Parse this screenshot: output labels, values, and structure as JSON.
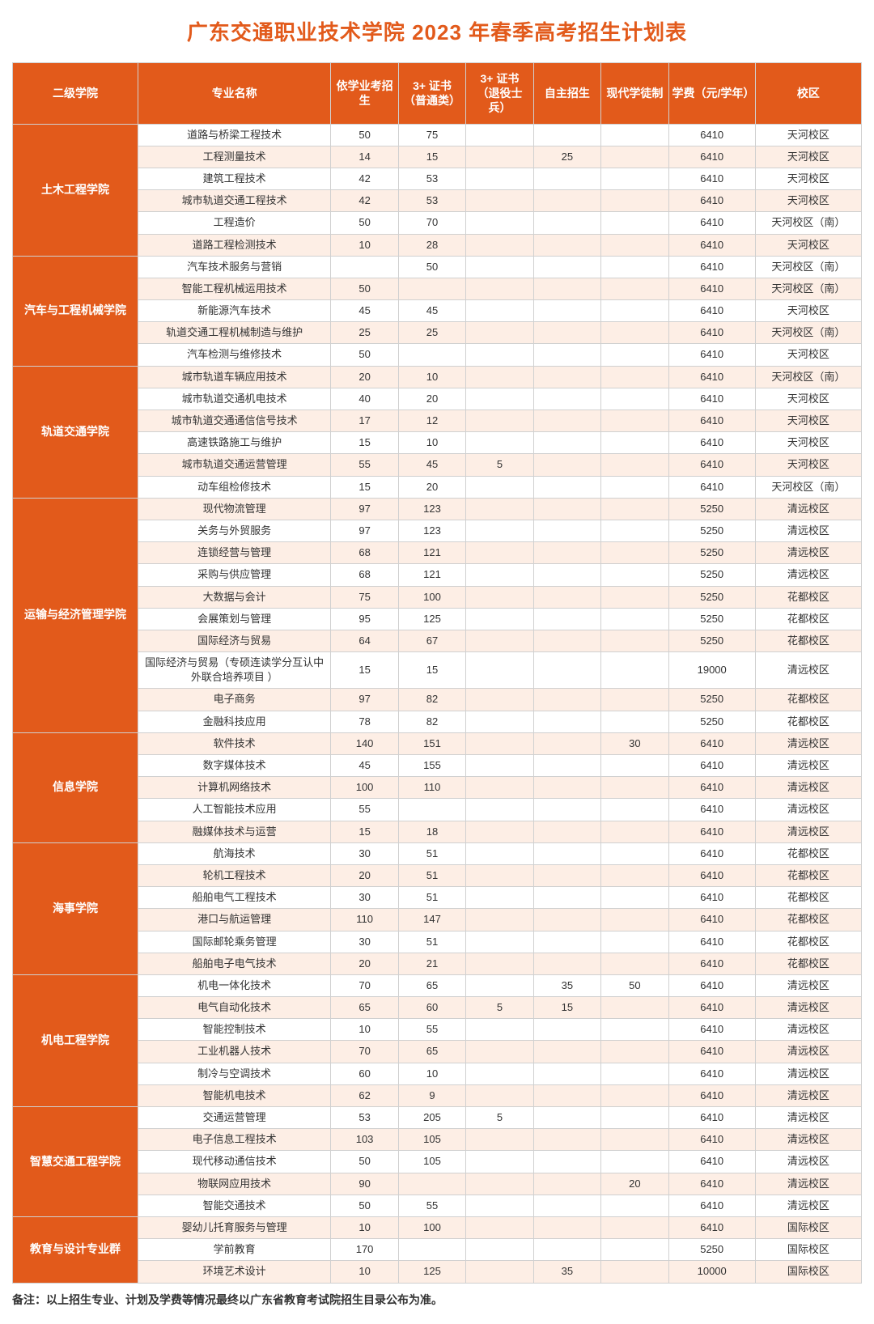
{
  "title": "广东交通职业技术学院 2023 年春季高考招生计划表",
  "columns": [
    "二级学院",
    "专业名称",
    "依学业考招生",
    "3+ 证书（普通类）",
    "3+ 证书（退役士兵）",
    "自主招生",
    "现代学徒制",
    "学费（元/学年）",
    "校区"
  ],
  "footnote": "备注：以上招生专业、计划及学费等情况最终以广东省教育考试院招生目录公布为准。",
  "colors": {
    "accent": "#e25a1b",
    "stripe_even": "#fdeee5",
    "stripe_odd": "#ffffff",
    "border": "#d0d0d0",
    "text": "#333333",
    "header_text": "#ffffff"
  },
  "colleges": [
    {
      "name": "土木工程学院",
      "rows": [
        {
          "major": "道路与桥梁工程技术",
          "c1": "50",
          "c2": "75",
          "c3": "",
          "c4": "",
          "c5": "",
          "fee": "6410",
          "campus": "天河校区"
        },
        {
          "major": "工程测量技术",
          "c1": "14",
          "c2": "15",
          "c3": "",
          "c4": "25",
          "c5": "",
          "fee": "6410",
          "campus": "天河校区"
        },
        {
          "major": "建筑工程技术",
          "c1": "42",
          "c2": "53",
          "c3": "",
          "c4": "",
          "c5": "",
          "fee": "6410",
          "campus": "天河校区"
        },
        {
          "major": "城市轨道交通工程技术",
          "c1": "42",
          "c2": "53",
          "c3": "",
          "c4": "",
          "c5": "",
          "fee": "6410",
          "campus": "天河校区"
        },
        {
          "major": "工程造价",
          "c1": "50",
          "c2": "70",
          "c3": "",
          "c4": "",
          "c5": "",
          "fee": "6410",
          "campus": "天河校区（南）"
        },
        {
          "major": "道路工程检测技术",
          "c1": "10",
          "c2": "28",
          "c3": "",
          "c4": "",
          "c5": "",
          "fee": "6410",
          "campus": "天河校区"
        }
      ]
    },
    {
      "name": "汽车与工程机械学院",
      "rows": [
        {
          "major": "汽车技术服务与营销",
          "c1": "",
          "c2": "50",
          "c3": "",
          "c4": "",
          "c5": "",
          "fee": "6410",
          "campus": "天河校区（南）"
        },
        {
          "major": "智能工程机械运用技术",
          "c1": "50",
          "c2": "",
          "c3": "",
          "c4": "",
          "c5": "",
          "fee": "6410",
          "campus": "天河校区（南）"
        },
        {
          "major": "新能源汽车技术",
          "c1": "45",
          "c2": "45",
          "c3": "",
          "c4": "",
          "c5": "",
          "fee": "6410",
          "campus": "天河校区"
        },
        {
          "major": "轨道交通工程机械制造与维护",
          "c1": "25",
          "c2": "25",
          "c3": "",
          "c4": "",
          "c5": "",
          "fee": "6410",
          "campus": "天河校区（南）"
        },
        {
          "major": "汽车检测与维修技术",
          "c1": "50",
          "c2": "",
          "c3": "",
          "c4": "",
          "c5": "",
          "fee": "6410",
          "campus": "天河校区"
        }
      ]
    },
    {
      "name": "轨道交通学院",
      "rows": [
        {
          "major": "城市轨道车辆应用技术",
          "c1": "20",
          "c2": "10",
          "c3": "",
          "c4": "",
          "c5": "",
          "fee": "6410",
          "campus": "天河校区（南）"
        },
        {
          "major": "城市轨道交通机电技术",
          "c1": "40",
          "c2": "20",
          "c3": "",
          "c4": "",
          "c5": "",
          "fee": "6410",
          "campus": "天河校区"
        },
        {
          "major": "城市轨道交通通信信号技术",
          "c1": "17",
          "c2": "12",
          "c3": "",
          "c4": "",
          "c5": "",
          "fee": "6410",
          "campus": "天河校区"
        },
        {
          "major": "高速铁路施工与维护",
          "c1": "15",
          "c2": "10",
          "c3": "",
          "c4": "",
          "c5": "",
          "fee": "6410",
          "campus": "天河校区"
        },
        {
          "major": "城市轨道交通运营管理",
          "c1": "55",
          "c2": "45",
          "c3": "5",
          "c4": "",
          "c5": "",
          "fee": "6410",
          "campus": "天河校区"
        },
        {
          "major": "动车组检修技术",
          "c1": "15",
          "c2": "20",
          "c3": "",
          "c4": "",
          "c5": "",
          "fee": "6410",
          "campus": "天河校区（南）"
        }
      ]
    },
    {
      "name": "运输与经济管理学院",
      "rows": [
        {
          "major": "现代物流管理",
          "c1": "97",
          "c2": "123",
          "c3": "",
          "c4": "",
          "c5": "",
          "fee": "5250",
          "campus": "清远校区"
        },
        {
          "major": "关务与外贸服务",
          "c1": "97",
          "c2": "123",
          "c3": "",
          "c4": "",
          "c5": "",
          "fee": "5250",
          "campus": "清远校区"
        },
        {
          "major": "连锁经营与管理",
          "c1": "68",
          "c2": "121",
          "c3": "",
          "c4": "",
          "c5": "",
          "fee": "5250",
          "campus": "清远校区"
        },
        {
          "major": "采购与供应管理",
          "c1": "68",
          "c2": "121",
          "c3": "",
          "c4": "",
          "c5": "",
          "fee": "5250",
          "campus": "清远校区"
        },
        {
          "major": "大数据与会计",
          "c1": "75",
          "c2": "100",
          "c3": "",
          "c4": "",
          "c5": "",
          "fee": "5250",
          "campus": "花都校区"
        },
        {
          "major": "会展策划与管理",
          "c1": "95",
          "c2": "125",
          "c3": "",
          "c4": "",
          "c5": "",
          "fee": "5250",
          "campus": "花都校区"
        },
        {
          "major": "国际经济与贸易",
          "c1": "64",
          "c2": "67",
          "c3": "",
          "c4": "",
          "c5": "",
          "fee": "5250",
          "campus": "花都校区"
        },
        {
          "major": "国际经济与贸易（专硕连读学分互认中外联合培养项目 ）",
          "c1": "15",
          "c2": "15",
          "c3": "",
          "c4": "",
          "c5": "",
          "fee": "19000",
          "campus": "清远校区"
        },
        {
          "major": "电子商务",
          "c1": "97",
          "c2": "82",
          "c3": "",
          "c4": "",
          "c5": "",
          "fee": "5250",
          "campus": "花都校区"
        },
        {
          "major": "金融科技应用",
          "c1": "78",
          "c2": "82",
          "c3": "",
          "c4": "",
          "c5": "",
          "fee": "5250",
          "campus": "花都校区"
        }
      ]
    },
    {
      "name": "信息学院",
      "rows": [
        {
          "major": "软件技术",
          "c1": "140",
          "c2": "151",
          "c3": "",
          "c4": "",
          "c5": "30",
          "fee": "6410",
          "campus": "清远校区"
        },
        {
          "major": "数字媒体技术",
          "c1": "45",
          "c2": "155",
          "c3": "",
          "c4": "",
          "c5": "",
          "fee": "6410",
          "campus": "清远校区"
        },
        {
          "major": "计算机网络技术",
          "c1": "100",
          "c2": "110",
          "c3": "",
          "c4": "",
          "c5": "",
          "fee": "6410",
          "campus": "清远校区"
        },
        {
          "major": "人工智能技术应用",
          "c1": "55",
          "c2": "",
          "c3": "",
          "c4": "",
          "c5": "",
          "fee": "6410",
          "campus": "清远校区"
        },
        {
          "major": "融媒体技术与运营",
          "c1": "15",
          "c2": "18",
          "c3": "",
          "c4": "",
          "c5": "",
          "fee": "6410",
          "campus": "清远校区"
        }
      ]
    },
    {
      "name": "海事学院",
      "rows": [
        {
          "major": "航海技术",
          "c1": "30",
          "c2": "51",
          "c3": "",
          "c4": "",
          "c5": "",
          "fee": "6410",
          "campus": "花都校区"
        },
        {
          "major": "轮机工程技术",
          "c1": "20",
          "c2": "51",
          "c3": "",
          "c4": "",
          "c5": "",
          "fee": "6410",
          "campus": "花都校区"
        },
        {
          "major": "船舶电气工程技术",
          "c1": "30",
          "c2": "51",
          "c3": "",
          "c4": "",
          "c5": "",
          "fee": "6410",
          "campus": "花都校区"
        },
        {
          "major": "港口与航运管理",
          "c1": "110",
          "c2": "147",
          "c3": "",
          "c4": "",
          "c5": "",
          "fee": "6410",
          "campus": "花都校区"
        },
        {
          "major": "国际邮轮乘务管理",
          "c1": "30",
          "c2": "51",
          "c3": "",
          "c4": "",
          "c5": "",
          "fee": "6410",
          "campus": "花都校区"
        },
        {
          "major": "船舶电子电气技术",
          "c1": "20",
          "c2": "21",
          "c3": "",
          "c4": "",
          "c5": "",
          "fee": "6410",
          "campus": "花都校区"
        }
      ]
    },
    {
      "name": "机电工程学院",
      "rows": [
        {
          "major": "机电一体化技术",
          "c1": "70",
          "c2": "65",
          "c3": "",
          "c4": "35",
          "c5": "50",
          "fee": "6410",
          "campus": "清远校区"
        },
        {
          "major": "电气自动化技术",
          "c1": "65",
          "c2": "60",
          "c3": "5",
          "c4": "15",
          "c5": "",
          "fee": "6410",
          "campus": "清远校区"
        },
        {
          "major": "智能控制技术",
          "c1": "10",
          "c2": "55",
          "c3": "",
          "c4": "",
          "c5": "",
          "fee": "6410",
          "campus": "清远校区"
        },
        {
          "major": "工业机器人技术",
          "c1": "70",
          "c2": "65",
          "c3": "",
          "c4": "",
          "c5": "",
          "fee": "6410",
          "campus": "清远校区"
        },
        {
          "major": "制冷与空调技术",
          "c1": "60",
          "c2": "10",
          "c3": "",
          "c4": "",
          "c5": "",
          "fee": "6410",
          "campus": "清远校区"
        },
        {
          "major": "智能机电技术",
          "c1": "62",
          "c2": "9",
          "c3": "",
          "c4": "",
          "c5": "",
          "fee": "6410",
          "campus": "清远校区"
        }
      ]
    },
    {
      "name": "智慧交通工程学院",
      "rows": [
        {
          "major": "交通运营管理",
          "c1": "53",
          "c2": "205",
          "c3": "5",
          "c4": "",
          "c5": "",
          "fee": "6410",
          "campus": "清远校区"
        },
        {
          "major": "电子信息工程技术",
          "c1": "103",
          "c2": "105",
          "c3": "",
          "c4": "",
          "c5": "",
          "fee": "6410",
          "campus": "清远校区"
        },
        {
          "major": "现代移动通信技术",
          "c1": "50",
          "c2": "105",
          "c3": "",
          "c4": "",
          "c5": "",
          "fee": "6410",
          "campus": "清远校区"
        },
        {
          "major": "物联网应用技术",
          "c1": "90",
          "c2": "",
          "c3": "",
          "c4": "",
          "c5": "20",
          "fee": "6410",
          "campus": "清远校区"
        },
        {
          "major": "智能交通技术",
          "c1": "50",
          "c2": "55",
          "c3": "",
          "c4": "",
          "c5": "",
          "fee": "6410",
          "campus": "清远校区"
        }
      ]
    },
    {
      "name": "教育与设计专业群",
      "rows": [
        {
          "major": "婴幼儿托育服务与管理",
          "c1": "10",
          "c2": "100",
          "c3": "",
          "c4": "",
          "c5": "",
          "fee": "6410",
          "campus": "国际校区"
        },
        {
          "major": "学前教育",
          "c1": "170",
          "c2": "",
          "c3": "",
          "c4": "",
          "c5": "",
          "fee": "5250",
          "campus": "国际校区"
        },
        {
          "major": "环境艺术设计",
          "c1": "10",
          "c2": "125",
          "c3": "",
          "c4": "35",
          "c5": "",
          "fee": "10000",
          "campus": "国际校区"
        }
      ]
    }
  ]
}
